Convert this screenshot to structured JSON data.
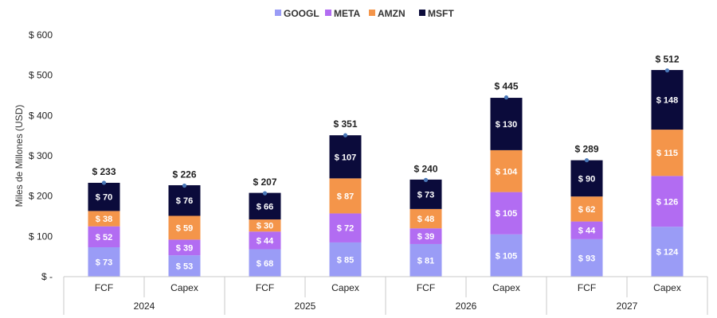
{
  "chart_data": {
    "type": "bar",
    "stacked": true,
    "groups": [
      "2024",
      "2025",
      "2026",
      "2027"
    ],
    "subcategories": [
      "FCF",
      "Capex",
      "FCF",
      "Capex",
      "FCF",
      "Capex",
      "FCF",
      "Capex"
    ],
    "series": [
      {
        "name": "GOOGL",
        "color": "#9a9cf6",
        "values": [
          73,
          53,
          68,
          85,
          81,
          105,
          93,
          124
        ]
      },
      {
        "name": "META",
        "color": "#b26cf2",
        "values": [
          52,
          39,
          44,
          72,
          39,
          105,
          44,
          126
        ]
      },
      {
        "name": "AMZN",
        "color": "#f4954a",
        "values": [
          38,
          59,
          30,
          87,
          48,
          104,
          62,
          115
        ]
      },
      {
        "name": "MSFT",
        "color": "#0b0b3b",
        "values": [
          70,
          76,
          66,
          107,
          73,
          130,
          90,
          148
        ]
      }
    ],
    "value_labels": [
      [
        "$ 73",
        "$ 53",
        "$ 68",
        "$ 85",
        "$ 81",
        "$ 105",
        "$ 93",
        "$ 124"
      ],
      [
        "$ 52",
        "$ 39",
        "$ 44",
        "$ 72",
        "$ 39",
        "$ 105",
        "$ 44",
        "$ 126"
      ],
      [
        "$ 38",
        "$ 59",
        "$ 30",
        "$ 87",
        "$ 48",
        "$ 104",
        "$ 62",
        "$ 115"
      ],
      [
        "$ 70",
        "$ 76",
        "$ 66",
        "$ 107",
        "$ 73",
        "$ 130",
        "$ 90",
        "$ 148"
      ]
    ],
    "totals": [
      233,
      226,
      207,
      351,
      240,
      445,
      289,
      512
    ],
    "total_labels": [
      "$ 233",
      "$ 226",
      "$ 207",
      "$ 351",
      "$ 240",
      "$ 445",
      "$ 289",
      "$ 512"
    ],
    "total_marker_color": "#4a78b8",
    "ylabel": "Miles de Millones (USD)",
    "ylim": [
      0,
      600
    ],
    "yticks": [
      0,
      100,
      200,
      300,
      400,
      500,
      600
    ],
    "ytick_labels": [
      "$ -",
      "$ 100",
      "$ 200",
      "$ 300",
      "$ 400",
      "$ 500",
      "$ 600"
    ],
    "legend_position": "top-center",
    "grid": false,
    "title": ""
  }
}
